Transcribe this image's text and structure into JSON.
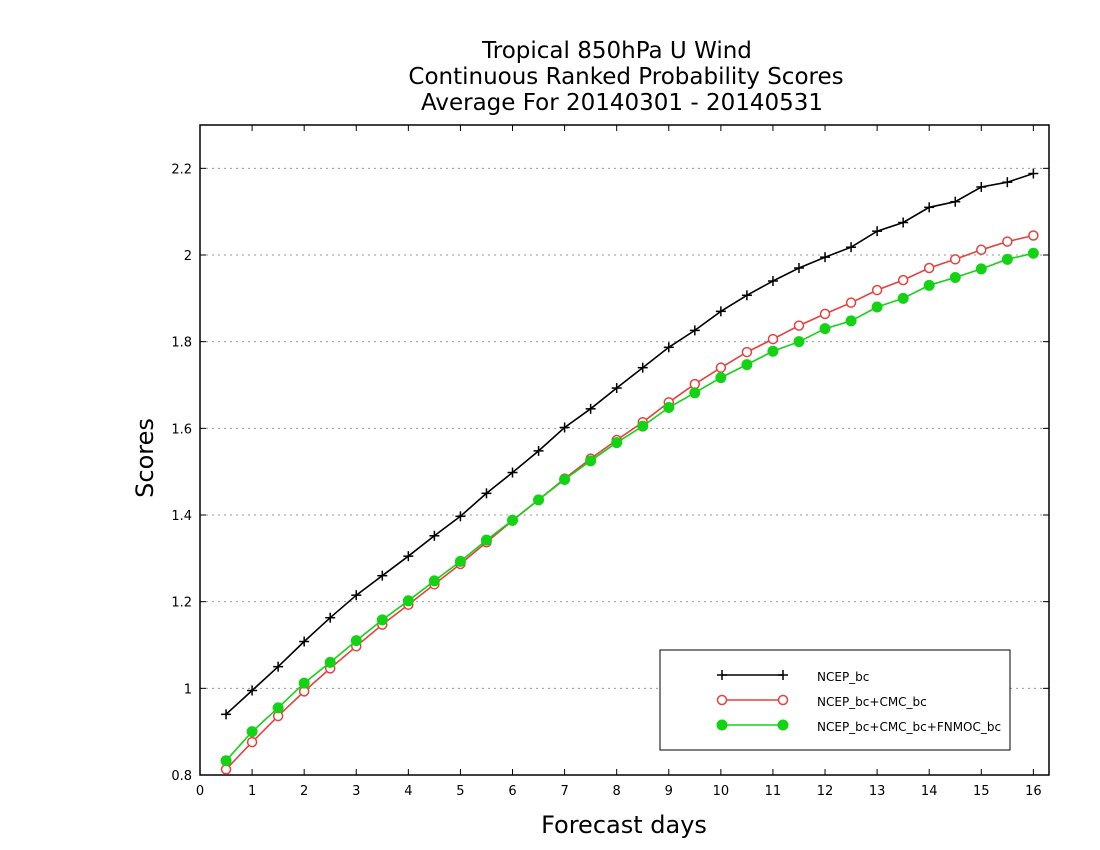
{
  "chart_data": {
    "type": "line",
    "title": [
      "Tropical 850hPa U Wind",
      "Continuous Ranked Probability Scores",
      "Average For 20140301 - 20140531"
    ],
    "xlabel": "Forecast days",
    "ylabel": "Scores",
    "xlim": [
      0,
      16.3
    ],
    "ylim": [
      0.8,
      2.3
    ],
    "xticks": [
      0,
      1,
      2,
      3,
      4,
      5,
      6,
      7,
      8,
      9,
      10,
      11,
      12,
      13,
      14,
      15,
      16
    ],
    "yticks": [
      0.8,
      1,
      1.2,
      1.4,
      1.6,
      1.8,
      2,
      2.2
    ],
    "ytick_labels": [
      "0.8",
      "1",
      "1.2",
      "1.4",
      "1.6",
      "1.8",
      "2",
      "2.2"
    ],
    "grid": "horizontal dotted",
    "legend_position": "bottom-right",
    "x": [
      0.5,
      1,
      1.5,
      2,
      2.5,
      3,
      3.5,
      4,
      4.5,
      5,
      5.5,
      6,
      6.5,
      7,
      7.5,
      8,
      8.5,
      9,
      9.5,
      10,
      10.5,
      11,
      11.5,
      12,
      12.5,
      13,
      13.5,
      14,
      14.5,
      15,
      15.5,
      16
    ],
    "series": [
      {
        "name": "NCEP_bc",
        "color": "#000000",
        "marker": "plus",
        "values": [
          0.94,
          0.995,
          1.05,
          1.108,
          1.163,
          1.215,
          1.26,
          1.305,
          1.352,
          1.397,
          1.45,
          1.498,
          1.548,
          1.602,
          1.645,
          1.693,
          1.74,
          1.787,
          1.826,
          1.87,
          1.907,
          1.94,
          1.97,
          1.995,
          2.018,
          2.055,
          2.075,
          2.11,
          2.123,
          2.157,
          2.168,
          2.188
        ]
      },
      {
        "name": "NCEP_bc+CMC_bc",
        "color": "#e8403e",
        "marker": "open-circle",
        "values": [
          0.813,
          0.876,
          0.936,
          0.993,
          1.046,
          1.097,
          1.147,
          1.193,
          1.24,
          1.287,
          1.337,
          1.387,
          1.435,
          1.484,
          1.53,
          1.573,
          1.614,
          1.66,
          1.702,
          1.74,
          1.776,
          1.806,
          1.837,
          1.864,
          1.89,
          1.919,
          1.942,
          1.97,
          1.99,
          2.012,
          2.031,
          2.045
        ]
      },
      {
        "name": "NCEP_bc+CMC_bc+FNMOC_bc",
        "color": "#14d214",
        "marker": "filled-circle",
        "values": [
          0.833,
          0.9,
          0.955,
          1.012,
          1.06,
          1.11,
          1.158,
          1.202,
          1.248,
          1.293,
          1.342,
          1.388,
          1.435,
          1.482,
          1.525,
          1.567,
          1.605,
          1.648,
          1.682,
          1.717,
          1.747,
          1.778,
          1.8,
          1.83,
          1.848,
          1.88,
          1.9,
          1.93,
          1.948,
          1.968,
          1.99,
          2.004
        ]
      }
    ]
  }
}
